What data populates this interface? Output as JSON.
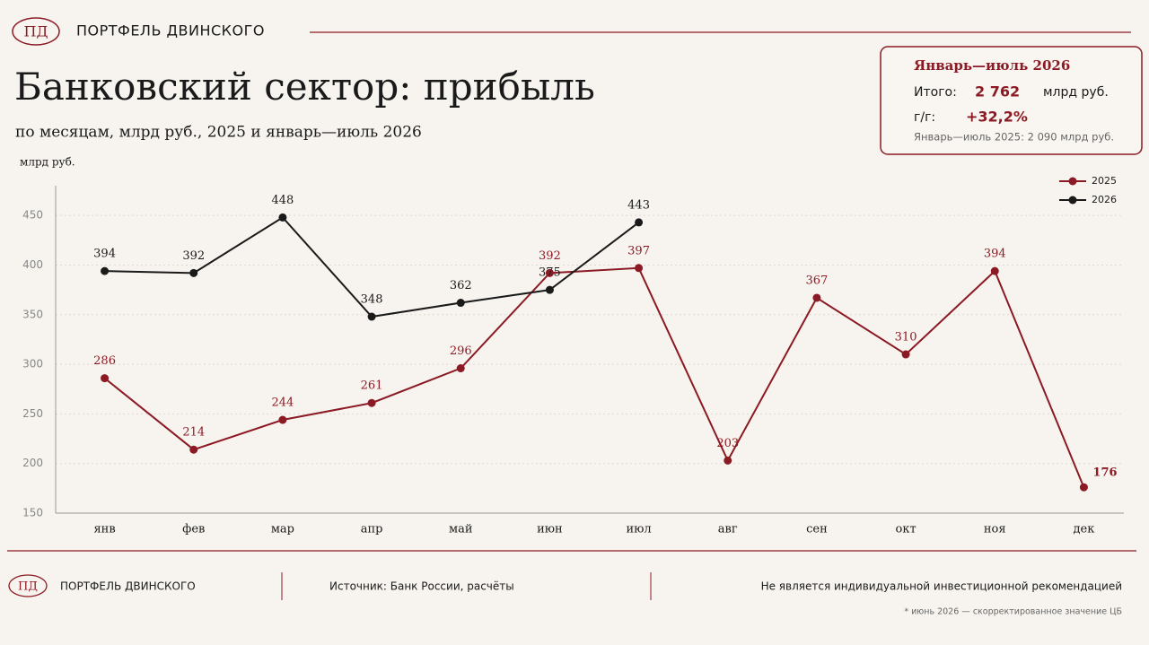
{
  "header": {
    "logo": "ПД",
    "brand": "ПОРТФЕЛЬ ДВИНСКОГО"
  },
  "summary": {
    "title": "Январь—июль 2026",
    "total_label": "Итого:",
    "total": "2 762",
    "total_unit": "млрд руб.",
    "yoy_label": "г/г:",
    "yoy": "+32,2%",
    "note": "Январь—июль 2025: 2 090 млрд руб."
  },
  "chart_data": {
    "type": "line",
    "title": "Банковский сектор: прибыль",
    "subtitle": "по месяцам, млрд руб., 2025 и январь—июль 2026",
    "y_label": "млрд руб.",
    "categories": [
      "янв",
      "фев",
      "мар",
      "апр",
      "май",
      "июн",
      "июл",
      "авг",
      "сен",
      "окт",
      "ноя",
      "дек"
    ],
    "series": [
      {
        "name": "2025",
        "color": "#8b1a24",
        "values": [
          286,
          214,
          244,
          261,
          296,
          392,
          397,
          203,
          367,
          310,
          394,
          176
        ]
      },
      {
        "name": "2026",
        "color": "#1a1a1a",
        "values": [
          394,
          392,
          448,
          348,
          362,
          375,
          443,
          null,
          null,
          null,
          null,
          null
        ]
      }
    ],
    "ylim": [
      150,
      480
    ],
    "yticks": [
      150,
      200,
      250,
      300,
      350,
      400,
      450
    ],
    "grid": true,
    "legend": "top-right"
  },
  "footer": {
    "logo": "ПД",
    "brand": "ПОРТФЕЛЬ ДВИНСКОГО",
    "source": "Источник: Банк России, расчёты",
    "disclaimer": "Не является индивидуальной инвестиционной рекомендацией",
    "footnote": "* июнь 2026 — скорректированное значение ЦБ"
  }
}
